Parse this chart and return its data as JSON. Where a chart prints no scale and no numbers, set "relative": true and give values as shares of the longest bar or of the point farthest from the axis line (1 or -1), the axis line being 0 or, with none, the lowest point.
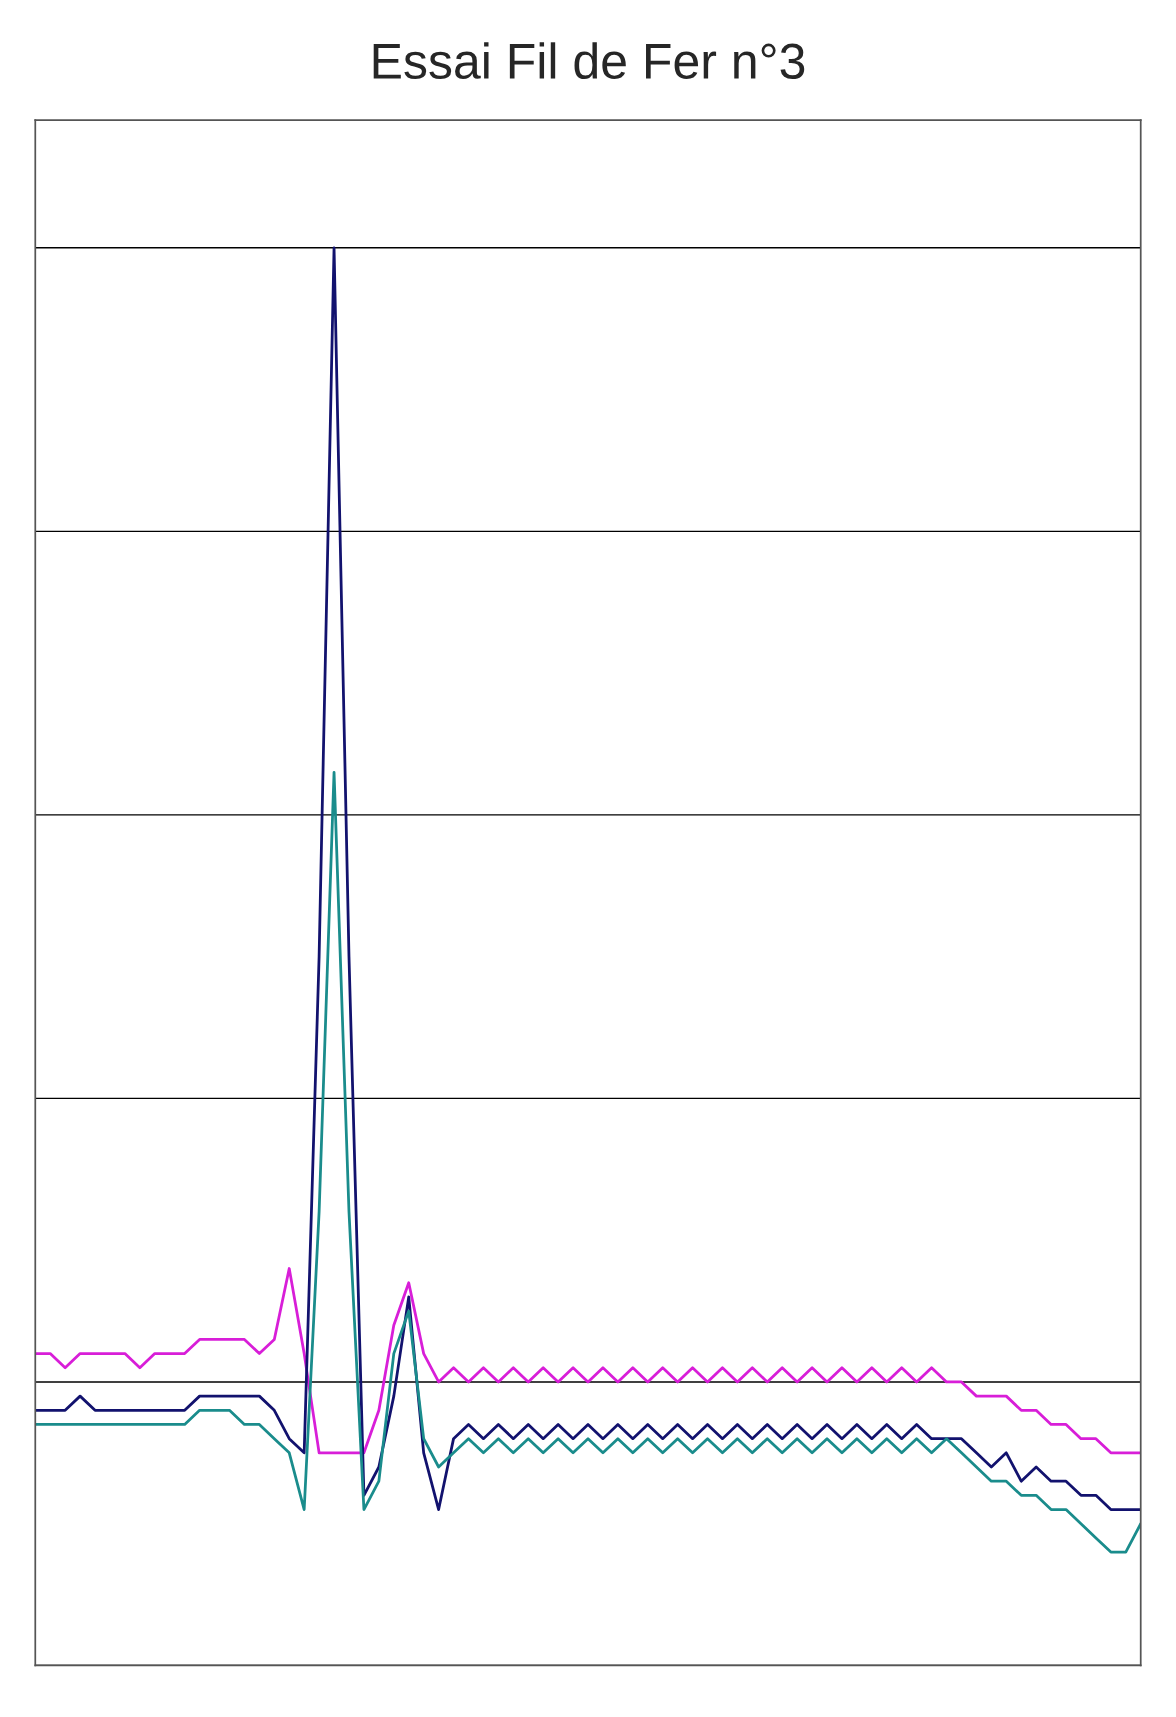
{
  "chart_data": {
    "type": "line",
    "title": "Essai Fil de Fer n°3",
    "relative": true,
    "grid": "y",
    "categories": [
      null,
      null,
      null,
      null,
      null,
      null,
      null,
      null,
      null,
      null,
      null,
      null,
      null,
      null,
      null,
      null,
      null,
      null,
      null,
      null,
      null,
      null,
      null,
      null,
      null,
      null,
      null,
      null,
      null,
      null,
      null,
      null,
      null,
      null,
      null,
      null,
      null,
      null,
      null,
      null,
      null,
      null,
      null,
      null,
      null,
      null,
      null,
      null,
      null,
      null,
      null,
      null,
      null,
      null,
      null,
      null,
      null,
      null,
      null,
      null,
      null,
      null,
      null,
      null,
      null,
      null,
      null,
      null,
      null,
      null,
      null,
      null,
      null,
      null,
      null
    ],
    "series": [
      {
        "color": "#d81ed8",
        "values": [
          0.22,
          0.22,
          0.21,
          0.22,
          0.22,
          0.22,
          0.22,
          0.21,
          0.22,
          0.22,
          0.22,
          0.23,
          0.23,
          0.23,
          0.23,
          0.22,
          0.23,
          0.28,
          0.22,
          0.15,
          0.15,
          0.15,
          0.15,
          0.18,
          0.24,
          0.27,
          0.22,
          0.2,
          0.21,
          0.2,
          0.21,
          0.2,
          0.21,
          0.2,
          0.21,
          0.2,
          0.21,
          0.2,
          0.21,
          0.2,
          0.21,
          0.2,
          0.21,
          0.2,
          0.21,
          0.2,
          0.21,
          0.2,
          0.21,
          0.2,
          0.21,
          0.2,
          0.21,
          0.2,
          0.21,
          0.2,
          0.21,
          0.2,
          0.21,
          0.2,
          0.21,
          0.2,
          0.2,
          0.19,
          0.19,
          0.19,
          0.18,
          0.18,
          0.17,
          0.17,
          0.16,
          0.16,
          0.15,
          0.15,
          0.15
        ]
      },
      {
        "color": "#12126e",
        "values": [
          0.18,
          0.18,
          0.18,
          0.19,
          0.18,
          0.18,
          0.18,
          0.18,
          0.18,
          0.18,
          0.18,
          0.19,
          0.19,
          0.19,
          0.19,
          0.19,
          0.18,
          0.16,
          0.15,
          0.5,
          1,
          0.5,
          0.12,
          0.14,
          0.19,
          0.26,
          0.15,
          0.11,
          0.16,
          0.17,
          0.16,
          0.17,
          0.16,
          0.17,
          0.16,
          0.17,
          0.16,
          0.17,
          0.16,
          0.17,
          0.16,
          0.17,
          0.16,
          0.17,
          0.16,
          0.17,
          0.16,
          0.17,
          0.16,
          0.17,
          0.16,
          0.17,
          0.16,
          0.17,
          0.16,
          0.17,
          0.16,
          0.17,
          0.16,
          0.17,
          0.16,
          0.16,
          0.16,
          0.15,
          0.14,
          0.15,
          0.13,
          0.14,
          0.13,
          0.13,
          0.12,
          0.12,
          0.11,
          0.11,
          0.11
        ]
      },
      {
        "color": "#1a8c8c",
        "values": [
          0.17,
          0.17,
          0.17,
          0.17,
          0.17,
          0.17,
          0.17,
          0.17,
          0.17,
          0.17,
          0.17,
          0.18,
          0.18,
          0.18,
          0.17,
          0.17,
          0.16,
          0.15,
          0.11,
          0.32,
          0.63,
          0.32,
          0.11,
          0.13,
          0.22,
          0.25,
          0.16,
          0.14,
          0.15,
          0.16,
          0.15,
          0.16,
          0.15,
          0.16,
          0.15,
          0.16,
          0.15,
          0.16,
          0.15,
          0.16,
          0.15,
          0.16,
          0.15,
          0.16,
          0.15,
          0.16,
          0.15,
          0.16,
          0.15,
          0.16,
          0.15,
          0.16,
          0.15,
          0.16,
          0.15,
          0.16,
          0.15,
          0.16,
          0.15,
          0.16,
          0.15,
          0.16,
          0.15,
          0.14,
          0.13,
          0.13,
          0.12,
          0.12,
          0.11,
          0.11,
          0.1,
          0.09,
          0.08,
          0.08,
          0.1
        ]
      }
    ]
  }
}
